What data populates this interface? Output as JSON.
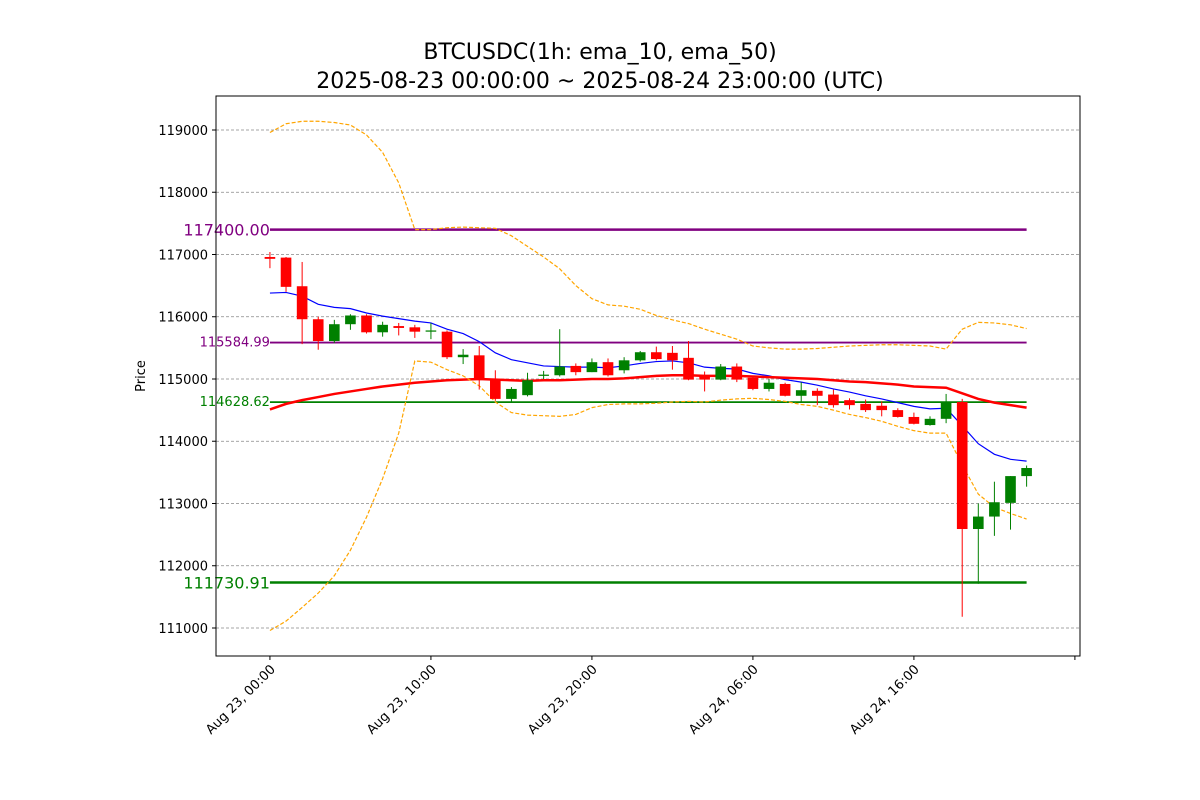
{
  "chart_data": {
    "type": "candlestick",
    "title": "BTCUSDC(1h: ema_10, ema_50)",
    "subtitle": "2025-08-23 00:00:00 ~ 2025-08-24 23:00:00 (UTC)",
    "y_label": "Price",
    "x": [
      "2025-08-23T00:00",
      "2025-08-23T01:00",
      "2025-08-23T02:00",
      "2025-08-23T03:00",
      "2025-08-23T04:00",
      "2025-08-23T05:00",
      "2025-08-23T06:00",
      "2025-08-23T07:00",
      "2025-08-23T08:00",
      "2025-08-23T09:00",
      "2025-08-23T10:00",
      "2025-08-23T11:00",
      "2025-08-23T12:00",
      "2025-08-23T13:00",
      "2025-08-23T14:00",
      "2025-08-23T15:00",
      "2025-08-23T16:00",
      "2025-08-23T17:00",
      "2025-08-23T18:00",
      "2025-08-23T19:00",
      "2025-08-23T20:00",
      "2025-08-23T21:00",
      "2025-08-23T22:00",
      "2025-08-23T23:00",
      "2025-08-24T00:00",
      "2025-08-24T01:00",
      "2025-08-24T02:00",
      "2025-08-24T03:00",
      "2025-08-24T04:00",
      "2025-08-24T05:00",
      "2025-08-24T06:00",
      "2025-08-24T07:00",
      "2025-08-24T08:00",
      "2025-08-24T09:00",
      "2025-08-24T10:00",
      "2025-08-24T11:00",
      "2025-08-24T12:00",
      "2025-08-24T13:00",
      "2025-08-24T14:00",
      "2025-08-24T15:00",
      "2025-08-24T16:00",
      "2025-08-24T17:00",
      "2025-08-24T18:00",
      "2025-08-24T19:00",
      "2025-08-24T20:00",
      "2025-08-24T21:00",
      "2025-08-24T22:00",
      "2025-08-24T23:00"
    ],
    "open": [
      116960,
      116950,
      116490,
      115960,
      115610,
      115880,
      116020,
      115750,
      115850,
      115830,
      115760,
      115760,
      115350,
      115380,
      114990,
      114680,
      114740,
      115050,
      115060,
      115210,
      115110,
      115270,
      115140,
      115300,
      115430,
      115420,
      115340,
      115060,
      114990,
      115200,
      115020,
      114840,
      114920,
      114730,
      114810,
      114750,
      114660,
      114600,
      114570,
      114500,
      114390,
      114260,
      114360,
      114630,
      112590,
      112790,
      113010,
      113440
    ],
    "high": [
      117040,
      116960,
      116880,
      116000,
      115950,
      116040,
      116040,
      115920,
      115900,
      115870,
      115900,
      115780,
      115480,
      115530,
      115140,
      114870,
      115100,
      115130,
      115800,
      115250,
      115330,
      115330,
      115350,
      115450,
      115520,
      115530,
      115610,
      115120,
      115240,
      115250,
      115050,
      115000,
      114940,
      114950,
      114850,
      114830,
      114690,
      114670,
      114640,
      114530,
      114460,
      114400,
      114760,
      114680,
      113000,
      113350,
      113440,
      113610
    ],
    "low": [
      116780,
      116400,
      115560,
      115470,
      115580,
      115790,
      115730,
      115680,
      115700,
      115660,
      115640,
      115320,
      115240,
      114830,
      114650,
      114620,
      114720,
      115000,
      115040,
      115060,
      115110,
      115040,
      115090,
      115280,
      115300,
      115150,
      114980,
      114800,
      114980,
      114950,
      114820,
      114800,
      114720,
      114620,
      114580,
      114540,
      114510,
      114470,
      114400,
      114380,
      114270,
      114250,
      114290,
      111180,
      111710,
      112480,
      112580,
      113270
    ],
    "close": [
      116930,
      116480,
      115960,
      115610,
      115880,
      116020,
      115750,
      115870,
      115820,
      115760,
      115780,
      115350,
      115390,
      114990,
      114680,
      114840,
      114980,
      115070,
      115200,
      115110,
      115270,
      115060,
      115300,
      115430,
      115320,
      115300,
      114990,
      114990,
      115200,
      114990,
      114840,
      114940,
      114730,
      114820,
      114730,
      114580,
      114580,
      114500,
      114500,
      114390,
      114280,
      114360,
      114630,
      112590,
      112790,
      113020,
      113440,
      113570
    ],
    "up_color": "green",
    "down_color": "red",
    "lines": [
      {
        "color": "blue",
        "width": 1.2,
        "dashed": false,
        "values": [
          116380,
          116390,
          116330,
          116200,
          116150,
          116130,
          116060,
          116010,
          115970,
          115930,
          115900,
          115800,
          115730,
          115600,
          115420,
          115310,
          115260,
          115210,
          115200,
          115190,
          115190,
          115180,
          115210,
          115250,
          115280,
          115290,
          115260,
          115190,
          115170,
          115160,
          115090,
          115050,
          114990,
          114950,
          114900,
          114840,
          114790,
          114730,
          114680,
          114620,
          114560,
          114520,
          114530,
          114250,
          113960,
          113790,
          113710,
          113680
        ]
      },
      {
        "color": "red",
        "width": 2.5,
        "dashed": false,
        "values": [
          114510,
          114600,
          114660,
          114710,
          114760,
          114800,
          114840,
          114880,
          114910,
          114940,
          114960,
          114980,
          114990,
          115000,
          114990,
          114980,
          114970,
          114980,
          114980,
          114990,
          115000,
          115000,
          115010,
          115030,
          115050,
          115060,
          115060,
          115050,
          115050,
          115050,
          115040,
          115030,
          115020,
          115010,
          115000,
          114980,
          114960,
          114950,
          114930,
          114910,
          114880,
          114870,
          114860,
          114770,
          114680,
          114620,
          114580,
          114540
        ]
      },
      {
        "color": "orange",
        "width": 1.2,
        "dashed": true,
        "values": [
          118960,
          119100,
          119140,
          119140,
          119120,
          119080,
          118920,
          118640,
          118150,
          117400,
          117400,
          117430,
          117440,
          117430,
          117420,
          117300,
          117130,
          116960,
          116770,
          116500,
          116290,
          116190,
          116170,
          116120,
          116020,
          115950,
          115890,
          115800,
          115720,
          115640,
          115530,
          115500,
          115480,
          115480,
          115490,
          115510,
          115530,
          115540,
          115550,
          115550,
          115540,
          115530,
          115480,
          115800,
          115910,
          115900,
          115870,
          115810
        ]
      },
      {
        "color": "orange",
        "width": 1.2,
        "dashed": true,
        "values": [
          110960,
          111110,
          111330,
          111560,
          111840,
          112250,
          112780,
          113400,
          114130,
          115290,
          115270,
          115150,
          115050,
          114890,
          114630,
          114460,
          114420,
          114410,
          114400,
          114430,
          114540,
          114590,
          114600,
          114600,
          114610,
          114630,
          114640,
          114630,
          114660,
          114680,
          114690,
          114670,
          114640,
          114590,
          114560,
          114500,
          114430,
          114380,
          114320,
          114240,
          114170,
          114130,
          114130,
          113620,
          113150,
          112940,
          112840,
          112750
        ]
      }
    ],
    "levels": [
      {
        "value": 117400,
        "label": "117400.00",
        "color": "purple",
        "width": 2.5,
        "major": true
      },
      {
        "value": 115584.99,
        "label": "115584.99",
        "color": "purple",
        "width": 1.8,
        "major": false
      },
      {
        "value": 114628.62,
        "label": "114628.62",
        "color": "green",
        "width": 1.8,
        "major": false
      },
      {
        "value": 111730.91,
        "label": "111730.91",
        "color": "green",
        "width": 2.5,
        "major": true
      }
    ],
    "xlim": [
      "2025-08-22T20:39",
      "2025-08-25T02:19"
    ],
    "xticks": [
      {
        "value": "2025-08-23T00:00",
        "label": "Aug 23, 00:00"
      },
      {
        "value": "2025-08-23T10:00",
        "label": "Aug 23, 10:00"
      },
      {
        "value": "2025-08-23T20:00",
        "label": "Aug 23, 20:00"
      },
      {
        "value": "2025-08-24T06:00",
        "label": "Aug 24, 06:00"
      },
      {
        "value": "2025-08-24T16:00",
        "label": "Aug 24, 16:00"
      },
      {
        "value": "2025-08-25T02:00",
        "label": null
      }
    ],
    "ylim": [
      110550,
      119546
    ],
    "yticks": [
      111000,
      112000,
      113000,
      114000,
      115000,
      116000,
      117000,
      118000,
      119000
    ],
    "grid": true
  }
}
